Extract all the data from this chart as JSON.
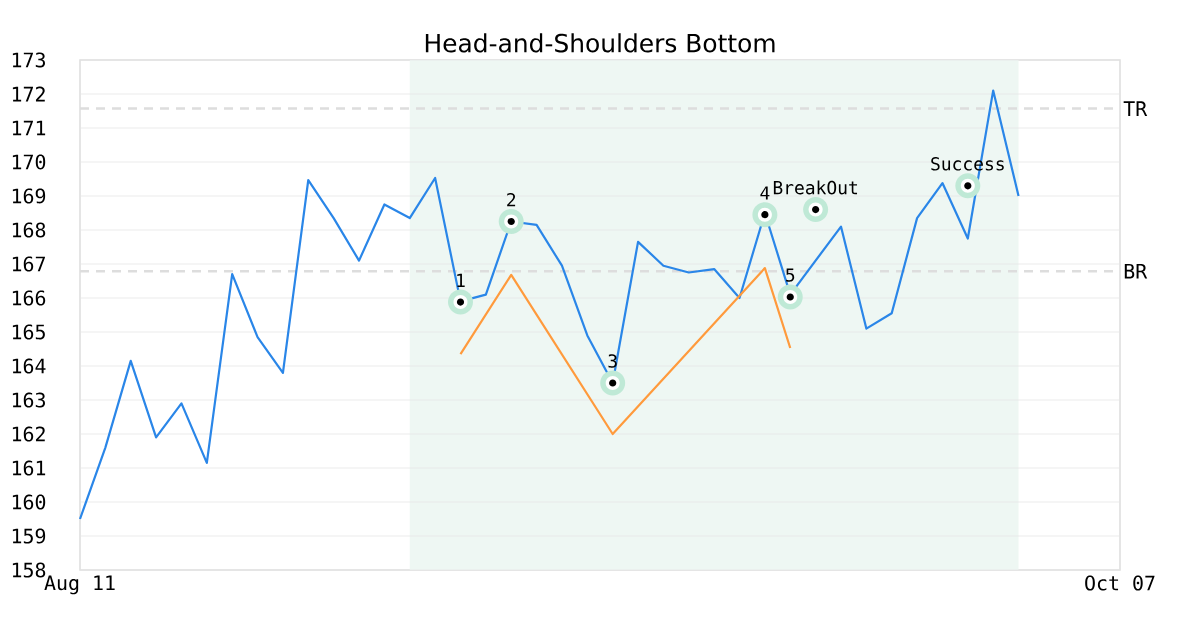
{
  "chart_data": {
    "type": "line",
    "title": "Head-and-Shoulders Bottom",
    "categories": [
      "Aug 11",
      null,
      null,
      null,
      null,
      null,
      null,
      null,
      null,
      null,
      null,
      null,
      null,
      null,
      null,
      null,
      null,
      null,
      null,
      null,
      null,
      null,
      null,
      null,
      null,
      null,
      null,
      null,
      null,
      null,
      null,
      null,
      null,
      null,
      null,
      null,
      null,
      null,
      null,
      null,
      null,
      "Oct 07"
    ],
    "ylim": [
      158,
      173
    ],
    "yticks": [
      158,
      159,
      160,
      161,
      162,
      163,
      164,
      165,
      166,
      167,
      168,
      169,
      170,
      171,
      172,
      173
    ],
    "grid": "y",
    "series": [
      {
        "color": "#2a86e8",
        "values": [
          159.5,
          161.6,
          164.15,
          161.9,
          162.9,
          161.15,
          166.7,
          164.85,
          163.8,
          169.47,
          168.35,
          167.1,
          168.75,
          168.35,
          169.53,
          165.9,
          166.1,
          168.25,
          168.15,
          166.95,
          164.9,
          163.5,
          167.65,
          166.95,
          166.75,
          166.85,
          166.0,
          168.5,
          166.1,
          null,
          168.1,
          165.1,
          165.55,
          168.35,
          169.38,
          167.75,
          172.1,
          169.0,
          null,
          null,
          null,
          null
        ]
      },
      {
        "color": "#ff9a3c",
        "values": [
          null,
          null,
          null,
          null,
          null,
          null,
          null,
          null,
          null,
          null,
          null,
          null,
          null,
          null,
          null,
          164.35,
          null,
          166.68,
          null,
          null,
          null,
          162.0,
          null,
          null,
          null,
          null,
          null,
          166.88,
          164.53,
          null,
          null,
          null,
          null,
          null,
          null,
          null,
          null,
          null,
          null,
          null,
          null,
          null
        ]
      },
      {
        "type": "scatter",
        "color": "#000000",
        "marker": "circle",
        "values": [
          null,
          null,
          null,
          null,
          null,
          null,
          null,
          null,
          null,
          null,
          null,
          null,
          null,
          null,
          null,
          165.88,
          null,
          168.25,
          null,
          null,
          null,
          163.5,
          null,
          null,
          null,
          null,
          null,
          168.45,
          166.03,
          168.6,
          null,
          null,
          null,
          null,
          null,
          169.3,
          null,
          null,
          null,
          null,
          null,
          null
        ]
      }
    ],
    "ref_lines": [
      {
        "axis": "y",
        "value": 171.57,
        "label": "TR",
        "color": "#dddddd",
        "line_style": "dashed"
      },
      {
        "axis": "y",
        "value": 166.79,
        "label": "BR",
        "color": "#dddddd",
        "line_style": "dashed"
      }
    ],
    "annotations": [
      "1",
      "2",
      "3",
      "4",
      "5",
      "BreakOut",
      "Success"
    ]
  }
}
